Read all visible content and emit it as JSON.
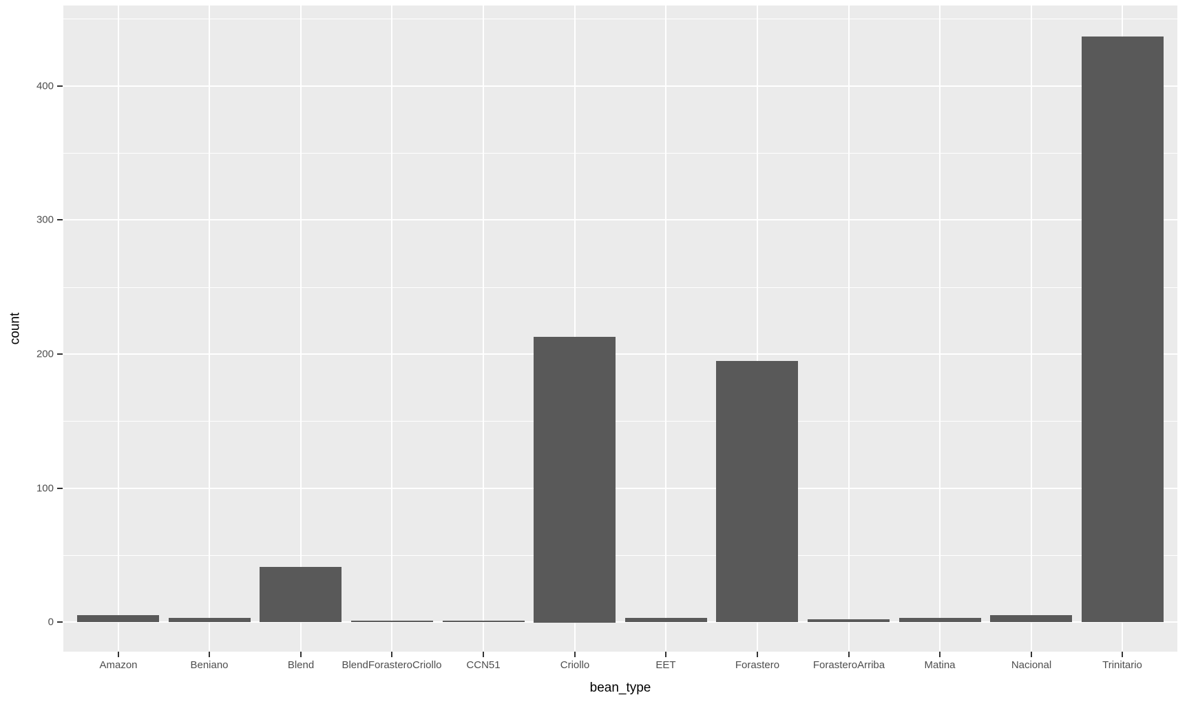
{
  "chart_data": {
    "type": "bar",
    "title": "",
    "xlabel": "bean_type",
    "ylabel": "count",
    "categories": [
      "Amazon",
      "Beniano",
      "Blend",
      "BlendForasteroCriollo",
      "CCN51",
      "Criollo",
      "EET",
      "Forastero",
      "ForasteroArriba",
      "Matina",
      "Nacional",
      "Trinitario"
    ],
    "values": [
      5,
      3,
      41,
      1,
      1,
      213,
      3,
      195,
      2,
      3,
      5,
      437
    ],
    "ylim": [
      -22,
      460
    ],
    "yticks_major": [
      0,
      100,
      200,
      300,
      400
    ],
    "yticks_minor": [
      50,
      150,
      250,
      350,
      450
    ],
    "grid": true,
    "legend_position": "none",
    "bar_fill_color": "#595959",
    "panel_background_color": "#EBEBEB",
    "gridline_color": "#FFFFFF",
    "tick_label_color": "#4D4D4D",
    "axis_title_color": "#000000",
    "tick_mark_color": "#333333"
  }
}
